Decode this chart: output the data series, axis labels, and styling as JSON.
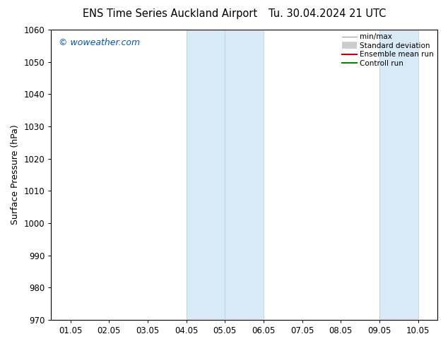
{
  "title_left": "ENS Time Series Auckland Airport",
  "title_right": "Tu. 30.04.2024 21 UTC",
  "ylabel": "Surface Pressure (hPa)",
  "ylim": [
    970,
    1060
  ],
  "yticks": [
    970,
    980,
    990,
    1000,
    1010,
    1020,
    1030,
    1040,
    1050,
    1060
  ],
  "xtick_labels": [
    "01.05",
    "02.05",
    "03.05",
    "04.05",
    "05.05",
    "06.05",
    "07.05",
    "08.05",
    "09.05",
    "10.05"
  ],
  "xtick_positions": [
    0,
    1,
    2,
    3,
    4,
    5,
    6,
    7,
    8,
    9
  ],
  "xlim": [
    -0.5,
    9.5
  ],
  "shaded_bands": [
    {
      "xmin": 3.0,
      "xmax": 4.0,
      "color": "#d9eaf7"
    },
    {
      "xmin": 4.0,
      "xmax": 5.0,
      "color": "#d9eaf7"
    },
    {
      "xmin": 8.0,
      "xmax": 9.0,
      "color": "#d9eaf7"
    }
  ],
  "band_edges": [
    3.0,
    4.0,
    5.0,
    8.0,
    9.0
  ],
  "watermark": "© woweather.com",
  "watermark_color": "#0055cc",
  "legend_items": [
    {
      "label": "min/max",
      "color": "#aaaaaa",
      "lw": 1.0,
      "style": "line"
    },
    {
      "label": "Standard deviation",
      "color": "#cccccc",
      "lw": 7,
      "style": "thick"
    },
    {
      "label": "Ensemble mean run",
      "color": "#cc0000",
      "lw": 1.5,
      "style": "line"
    },
    {
      "label": "Controll run",
      "color": "#008800",
      "lw": 1.5,
      "style": "line"
    }
  ],
  "bg_color": "#ffffff",
  "title_fontsize": 10.5,
  "ylabel_fontsize": 9,
  "tick_fontsize": 8.5,
  "watermark_fontsize": 9
}
